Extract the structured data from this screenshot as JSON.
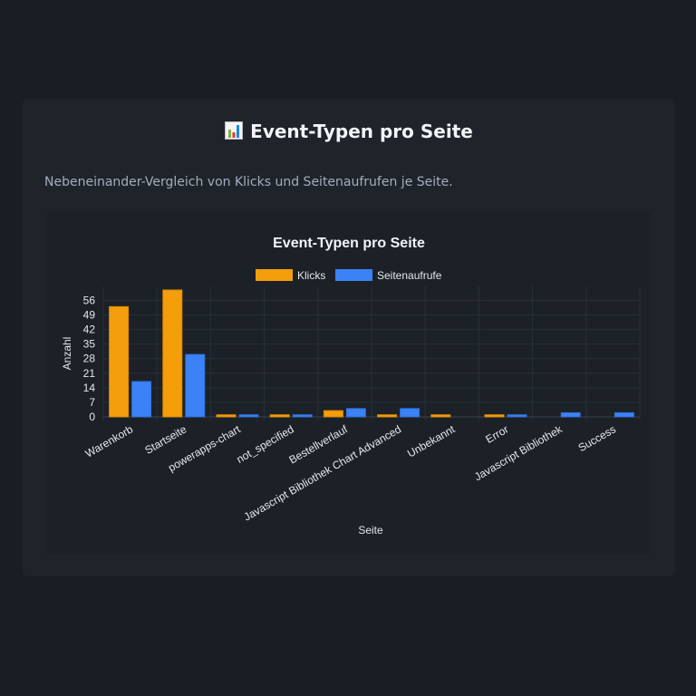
{
  "header": {
    "icon": "bar-chart-icon",
    "title": "Event-Typen pro Seite"
  },
  "description": "Nebeneinander-Vergleich von Klicks und Seitenaufrufen je Seite.",
  "chart_data": {
    "type": "bar",
    "title": "Event-Typen pro Seite",
    "xlabel": "Seite",
    "ylabel": "Anzahl",
    "ylim": [
      0,
      61
    ],
    "yticks": [
      0,
      7,
      14,
      21,
      28,
      35,
      42,
      49,
      56
    ],
    "grid": true,
    "legend_position": "top",
    "categories": [
      "Warenkorb",
      "Startseite",
      "powerapps-chart",
      "not_specified",
      "Bestellverlauf",
      "Javascript Bibliothek Chart Advanced",
      "Unbekannt",
      "Error",
      "Javascript Bibliothek",
      "Success"
    ],
    "series": [
      {
        "name": "Klicks",
        "color": "#f59e0b",
        "values": [
          53,
          61,
          1,
          1,
          3,
          1,
          1,
          1,
          0,
          0
        ]
      },
      {
        "name": "Seitenaufrufe",
        "color": "#3b82f6",
        "values": [
          17,
          30,
          1,
          1,
          4,
          4,
          0,
          1,
          2,
          2
        ]
      }
    ]
  }
}
